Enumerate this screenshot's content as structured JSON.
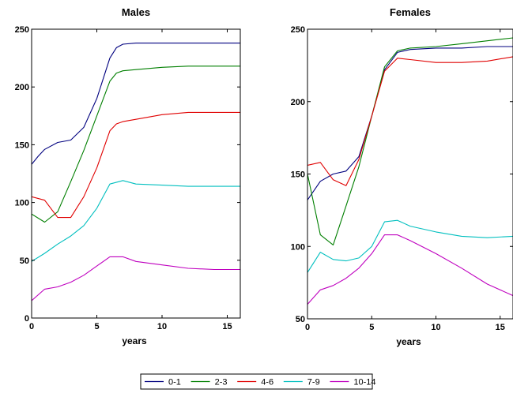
{
  "chart_data": [
    {
      "type": "line",
      "title": "Males",
      "xlabel": "years",
      "ylabel": "",
      "xlim": [
        0,
        16
      ],
      "ylim": [
        0,
        250
      ],
      "xticks": [
        0,
        5,
        10,
        15
      ],
      "xtick_labels": [
        "0",
        "5",
        "10",
        "15"
      ],
      "yticks": [
        0,
        50,
        100,
        150,
        200,
        250
      ],
      "ytick_labels": [
        "0",
        "50",
        "100",
        "150",
        "200",
        "250"
      ],
      "grid": false,
      "series": [
        {
          "name": "0-1",
          "color": "#00007f",
          "x": [
            0,
            0.5,
            1,
            2,
            3,
            4,
            5,
            6,
            6.5,
            7,
            8,
            10,
            12,
            14,
            16
          ],
          "y": [
            133,
            140,
            146,
            152,
            154,
            165,
            190,
            225,
            234,
            237,
            238,
            238,
            238,
            238,
            238
          ]
        },
        {
          "name": "2-3",
          "color": "#007f00",
          "x": [
            0,
            1,
            2,
            3,
            4,
            5,
            6,
            6.5,
            7,
            8,
            10,
            12,
            14,
            16
          ],
          "y": [
            90,
            83,
            92,
            118,
            145,
            175,
            205,
            212,
            214,
            215,
            217,
            218,
            218,
            218
          ]
        },
        {
          "name": "4-6",
          "color": "#e00000",
          "x": [
            0,
            1,
            2,
            3,
            4,
            5,
            6,
            6.5,
            7,
            8,
            10,
            12,
            14,
            16
          ],
          "y": [
            105,
            102,
            87,
            87,
            105,
            130,
            162,
            168,
            170,
            172,
            176,
            178,
            178,
            178
          ]
        },
        {
          "name": "7-9",
          "color": "#00bfbf",
          "x": [
            0,
            1,
            2,
            3,
            4,
            5,
            6,
            7,
            8,
            10,
            12,
            14,
            16
          ],
          "y": [
            49,
            56,
            64,
            71,
            80,
            95,
            116,
            119,
            116,
            115,
            114,
            114,
            114
          ]
        },
        {
          "name": "10-14",
          "color": "#bf00bf",
          "x": [
            0,
            1,
            2,
            3,
            4,
            5,
            6,
            7,
            8,
            10,
            12,
            14,
            16
          ],
          "y": [
            15,
            25,
            27,
            31,
            37,
            45,
            53,
            53,
            49,
            46,
            43,
            42,
            42
          ]
        }
      ]
    },
    {
      "type": "line",
      "title": "Females",
      "xlabel": "years",
      "ylabel": "",
      "xlim": [
        0,
        16
      ],
      "ylim": [
        50,
        250
      ],
      "xticks": [
        0,
        5,
        10,
        15
      ],
      "xtick_labels": [
        "0",
        "5",
        "10",
        "15"
      ],
      "yticks": [
        50,
        100,
        150,
        200,
        250
      ],
      "ytick_labels": [
        "50",
        "100",
        "150",
        "200",
        "250"
      ],
      "grid": false,
      "series": [
        {
          "name": "0-1",
          "color": "#00007f",
          "x": [
            0,
            1,
            2,
            3,
            4,
            5,
            6,
            7,
            8,
            10,
            12,
            14,
            16
          ],
          "y": [
            132,
            145,
            150,
            152,
            162,
            190,
            222,
            234,
            236,
            237,
            237,
            238,
            238
          ]
        },
        {
          "name": "2-3",
          "color": "#007f00",
          "x": [
            0,
            1,
            2,
            3,
            4,
            5,
            6,
            7,
            8,
            10,
            12,
            14,
            16
          ],
          "y": [
            150,
            108,
            101,
            128,
            155,
            190,
            224,
            235,
            237,
            238,
            240,
            242,
            244
          ]
        },
        {
          "name": "4-6",
          "color": "#e00000",
          "x": [
            0,
            1,
            2,
            3,
            4,
            5,
            6,
            7,
            8,
            10,
            12,
            14,
            16
          ],
          "y": [
            156,
            158,
            146,
            142,
            160,
            190,
            221,
            230,
            229,
            227,
            227,
            228,
            231
          ]
        },
        {
          "name": "7-9",
          "color": "#00bfbf",
          "x": [
            0,
            1,
            2,
            3,
            4,
            5,
            6,
            7,
            8,
            10,
            12,
            14,
            16
          ],
          "y": [
            82,
            96,
            91,
            90,
            92,
            100,
            117,
            118,
            114,
            110,
            107,
            106,
            107
          ]
        },
        {
          "name": "10-14",
          "color": "#bf00bf",
          "x": [
            0,
            1,
            2,
            3,
            4,
            5,
            6,
            7,
            8,
            10,
            12,
            14,
            16
          ],
          "y": [
            60,
            70,
            73,
            78,
            85,
            95,
            108,
            108,
            104,
            95,
            85,
            74,
            66
          ]
        }
      ]
    }
  ],
  "legend": {
    "placement": "bottom-center",
    "entries": [
      {
        "label": "0-1",
        "color": "#00007f"
      },
      {
        "label": "2-3",
        "color": "#007f00"
      },
      {
        "label": "4-6",
        "color": "#e00000"
      },
      {
        "label": "7-9",
        "color": "#00bfbf"
      },
      {
        "label": "10-14",
        "color": "#bf00bf"
      }
    ]
  }
}
